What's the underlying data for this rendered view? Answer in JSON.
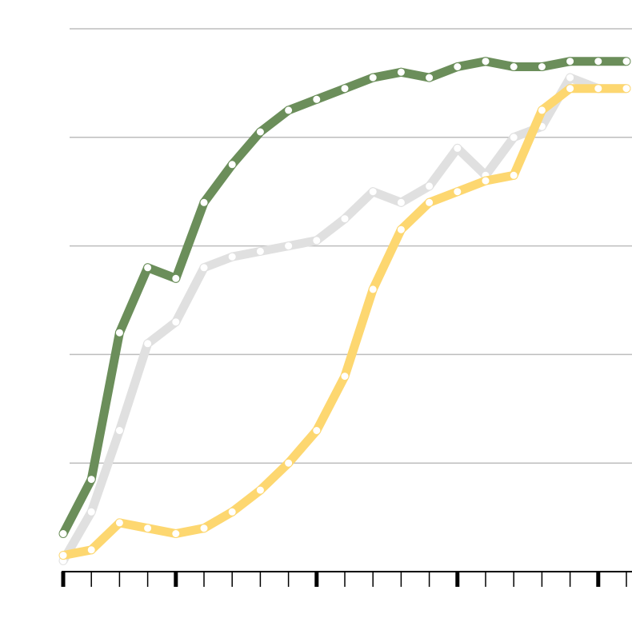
{
  "chart_data": {
    "type": "line",
    "title": "",
    "xlabel": "",
    "ylabel": "",
    "x": [
      0,
      1,
      2,
      3,
      4,
      5,
      6,
      7,
      8,
      9,
      10,
      11,
      12,
      13,
      14,
      15,
      16,
      17,
      18,
      19,
      20
    ],
    "ylim": [
      0,
      100
    ],
    "yticks": [
      0,
      20,
      40,
      60,
      80,
      100
    ],
    "grid": true,
    "legend": "none",
    "series": [
      {
        "color": "#6b8e5a",
        "values": [
          7,
          17,
          44,
          56,
          54,
          68,
          75,
          81,
          85,
          87,
          89,
          91,
          92,
          91,
          93,
          94,
          93,
          93,
          94,
          94,
          94
        ]
      },
      {
        "color": "#e0e0e0",
        "values": [
          2,
          11,
          26,
          42,
          46,
          56,
          58,
          59,
          60,
          61,
          65,
          70,
          68,
          71,
          78,
          73,
          80,
          82,
          91,
          89,
          89
        ]
      },
      {
        "color": "#fdd770",
        "values": [
          3,
          4,
          9,
          8,
          7,
          8,
          11,
          15,
          20,
          26,
          36,
          52,
          63,
          68,
          70,
          72,
          73,
          85,
          89,
          89,
          89
        ]
      }
    ]
  }
}
